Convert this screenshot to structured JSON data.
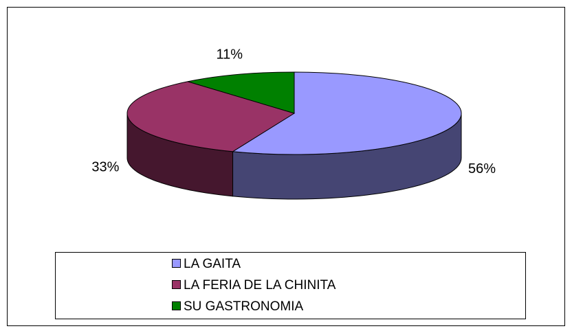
{
  "chart_data": {
    "type": "pie3d",
    "categories": [
      "LA GAITA",
      "LA FERIA DE LA CHINITA",
      "SU GASTRONOMIA"
    ],
    "values": [
      56,
      33,
      11
    ],
    "value_labels": [
      "56%",
      "33%",
      "11%"
    ],
    "colors": [
      "#9999ff",
      "#993366",
      "#008000"
    ],
    "legend": "bottom"
  }
}
